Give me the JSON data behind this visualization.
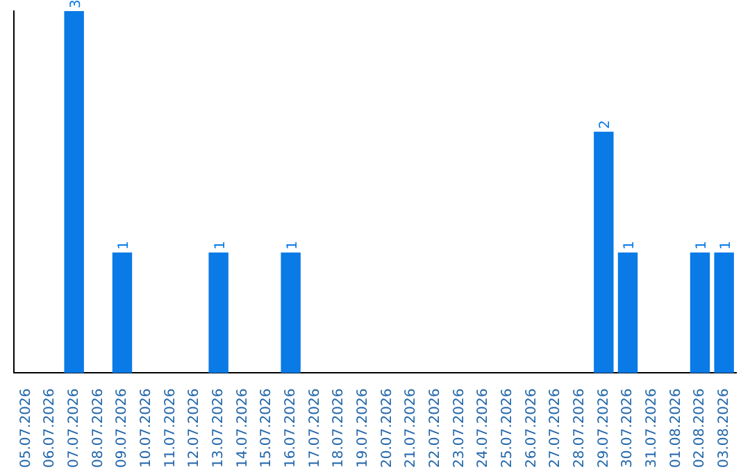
{
  "chart_data": {
    "type": "bar",
    "categories": [
      "05.07.2026",
      "06.07.2026",
      "07.07.2026",
      "08.07.2026",
      "09.07.2026",
      "10.07.2026",
      "11.07.2026",
      "12.07.2026",
      "13.07.2026",
      "14.07.2026",
      "15.07.2026",
      "16.07.2026",
      "17.07.2026",
      "18.07.2026",
      "19.07.2026",
      "20.07.2026",
      "21.07.2026",
      "22.07.2026",
      "23.07.2026",
      "24.07.2026",
      "25.07.2026",
      "26.07.2026",
      "27.07.2026",
      "28.07.2026",
      "29.07.2026",
      "30.07.2026",
      "31.07.2026",
      "01.08.2026",
      "02.08.2026",
      "03.08.2026"
    ],
    "values": [
      0,
      0,
      3,
      0,
      1,
      0,
      0,
      0,
      1,
      0,
      0,
      1,
      0,
      0,
      0,
      0,
      0,
      0,
      0,
      0,
      0,
      0,
      0,
      0,
      2,
      1,
      0,
      0,
      1,
      1
    ],
    "value_labels": [
      null,
      null,
      "3",
      null,
      "1",
      null,
      null,
      null,
      "1",
      null,
      null,
      "1",
      null,
      null,
      null,
      null,
      null,
      null,
      null,
      null,
      null,
      null,
      null,
      null,
      "2",
      "1",
      null,
      null,
      "1",
      "1"
    ],
    "color": "#0a7ae6",
    "grid": false,
    "legend": false
  }
}
